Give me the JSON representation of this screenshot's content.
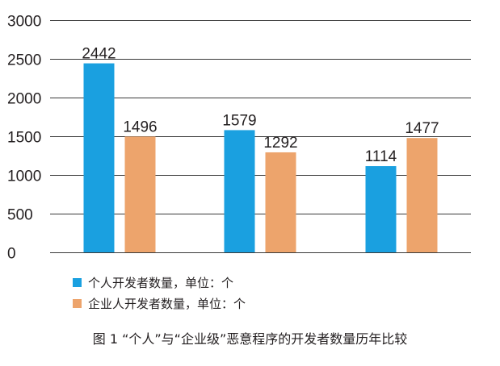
{
  "chart_data": {
    "type": "bar",
    "categories": [
      "",
      "",
      ""
    ],
    "series": [
      {
        "name": "个人开发者数量，单位：个",
        "values": [
          2442,
          1579,
          1114
        ],
        "color": "#1aa0e0"
      },
      {
        "name": "企业人开发者数量，单位：个",
        "values": [
          1496,
          1292,
          1477
        ],
        "color": "#eda46c"
      }
    ],
    "yticks": [
      0,
      500,
      1000,
      1500,
      2000,
      2500,
      3000
    ],
    "ylim": [
      0,
      3000
    ],
    "grid": true,
    "legend_position": "bottom-left",
    "title": "图 1 “个人”与“企业级”恶意程序的开发者数量历年比较"
  }
}
